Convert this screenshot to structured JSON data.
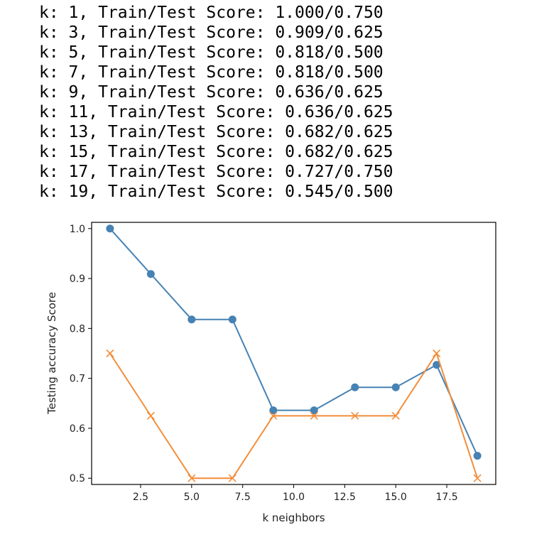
{
  "log_lines": [
    "k: 1, Train/Test Score: 1.000/0.750",
    "k: 3, Train/Test Score: 0.909/0.625",
    "k: 5, Train/Test Score: 0.818/0.500",
    "k: 7, Train/Test Score: 0.818/0.500",
    "k: 9, Train/Test Score: 0.636/0.625",
    "k: 11, Train/Test Score: 0.636/0.625",
    "k: 13, Train/Test Score: 0.682/0.625",
    "k: 15, Train/Test Score: 0.682/0.625",
    "k: 17, Train/Test Score: 0.727/0.750",
    "k: 19, Train/Test Score: 0.545/0.500"
  ],
  "chart_data": {
    "type": "line",
    "title": "",
    "xlabel": "k neighbors",
    "ylabel": "Testing accuracy Score",
    "x": [
      1,
      3,
      5,
      7,
      9,
      11,
      13,
      15,
      17,
      19
    ],
    "xlim": [
      0.1,
      19.9
    ],
    "ylim": [
      0.4875,
      1.0125
    ],
    "xticks": [
      2.5,
      5.0,
      7.5,
      10.0,
      12.5,
      15.0,
      17.5
    ],
    "xtick_labels": [
      "2.5",
      "5.0",
      "7.5",
      "10.0",
      "12.5",
      "15.0",
      "17.5"
    ],
    "yticks": [
      0.5,
      0.6,
      0.7,
      0.8,
      0.9,
      1.0
    ],
    "ytick_labels": [
      "0.5",
      "0.6",
      "0.7",
      "0.8",
      "0.9",
      "1.0"
    ],
    "grid": false,
    "series": [
      {
        "values": [
          1.0,
          0.909,
          0.818,
          0.818,
          0.636,
          0.636,
          0.682,
          0.682,
          0.727,
          0.545
        ],
        "marker": "circle",
        "color": "#4682b4"
      },
      {
        "values": [
          0.75,
          0.625,
          0.5,
          0.5,
          0.625,
          0.625,
          0.625,
          0.625,
          0.75,
          0.5
        ],
        "marker": "x",
        "color": "#f28e3b"
      }
    ]
  }
}
